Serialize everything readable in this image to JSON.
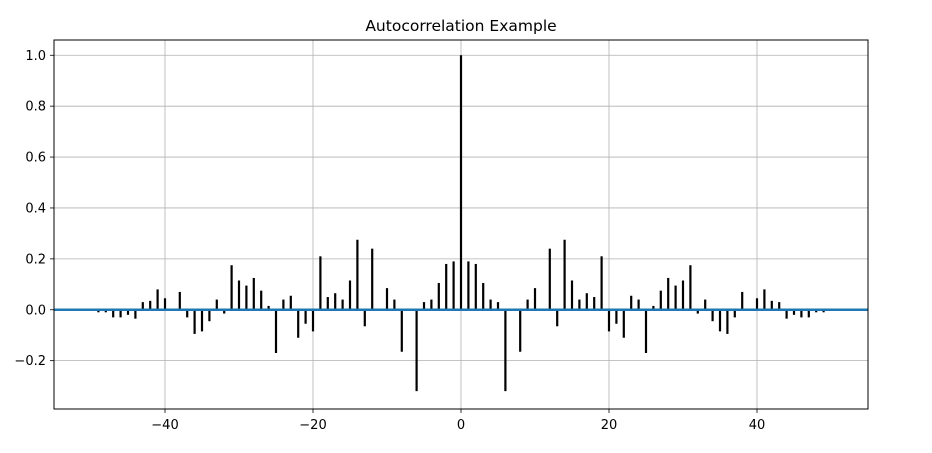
{
  "chart_data": {
    "type": "bar",
    "title": "Autocorrelation Example",
    "xlabel": "",
    "ylabel": "",
    "xlim": [
      -55,
      55
    ],
    "ylim": [
      -0.39,
      1.06
    ],
    "xticks": [
      -40,
      -20,
      0,
      20,
      40
    ],
    "xtick_labels": [
      "−40",
      "−20",
      "0",
      "20",
      "40"
    ],
    "yticks": [
      -0.2,
      0.0,
      0.2,
      0.4,
      0.6,
      0.8,
      1.0
    ],
    "ytick_labels": [
      "−0.2",
      "0.0",
      "0.2",
      "0.4",
      "0.6",
      "0.8",
      "1.0"
    ],
    "grid": true,
    "bar_color": "#000000",
    "zero_line_color": "#1f77b4",
    "lags": [
      -49,
      -48,
      -47,
      -46,
      -45,
      -44,
      -43,
      -42,
      -41,
      -40,
      -39,
      -38,
      -37,
      -36,
      -35,
      -34,
      -33,
      -32,
      -31,
      -30,
      -29,
      -28,
      -27,
      -26,
      -25,
      -24,
      -23,
      -22,
      -21,
      -20,
      -19,
      -18,
      -17,
      -16,
      -15,
      -14,
      -13,
      -12,
      -11,
      -10,
      -9,
      -8,
      -7,
      -6,
      -5,
      -4,
      -3,
      -2,
      -1,
      0,
      1,
      2,
      3,
      4,
      5,
      6,
      7,
      8,
      9,
      10,
      11,
      12,
      13,
      14,
      15,
      16,
      17,
      18,
      19,
      20,
      21,
      22,
      23,
      24,
      25,
      26,
      27,
      28,
      29,
      30,
      31,
      32,
      33,
      34,
      35,
      36,
      37,
      38,
      39,
      40,
      41,
      42,
      43,
      44,
      45,
      46,
      47,
      48,
      49
    ],
    "values": [
      -0.01,
      -0.01,
      -0.03,
      -0.03,
      -0.02,
      -0.035,
      0.03,
      0.035,
      0.08,
      0.045,
      0.0,
      0.07,
      -0.03,
      -0.095,
      -0.085,
      -0.045,
      0.04,
      -0.015,
      0.175,
      0.115,
      0.095,
      0.125,
      0.075,
      0.015,
      -0.17,
      0.04,
      0.055,
      -0.11,
      -0.055,
      -0.085,
      0.21,
      0.05,
      0.065,
      0.04,
      0.115,
      0.275,
      -0.065,
      0.24,
      0.0,
      0.085,
      0.04,
      -0.165,
      0.0,
      -0.32,
      0.03,
      0.04,
      0.105,
      0.18,
      0.19,
      1.0,
      0.19,
      0.18,
      0.105,
      0.04,
      0.03,
      -0.32,
      0.0,
      -0.165,
      0.04,
      0.085,
      0.0,
      0.24,
      -0.065,
      0.275,
      0.115,
      0.04,
      0.065,
      0.05,
      0.21,
      -0.085,
      -0.055,
      -0.11,
      0.055,
      0.04,
      -0.17,
      0.015,
      0.075,
      0.125,
      0.095,
      0.115,
      0.175,
      -0.015,
      0.04,
      -0.045,
      -0.085,
      -0.095,
      -0.03,
      0.07,
      0.0,
      0.045,
      0.08,
      0.035,
      0.03,
      -0.035,
      -0.02,
      -0.03,
      -0.03,
      -0.01,
      -0.01
    ]
  }
}
